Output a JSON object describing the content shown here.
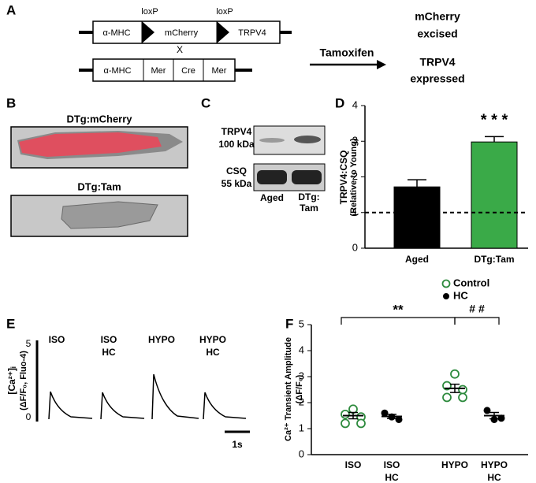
{
  "panels": [
    "A",
    "B",
    "C",
    "D",
    "E",
    "F"
  ],
  "construct": {
    "loxp": [
      "loxP",
      "loxP"
    ],
    "top": [
      "α-MHC",
      "mCherry",
      "TRPV4"
    ],
    "cross": "X",
    "bottom": [
      "α-MHC",
      "Mer",
      "Cre",
      "Mer"
    ],
    "arrow": "Tamoxifen",
    "result1": [
      "mCherry",
      "excised"
    ],
    "result2": [
      "TRPV4",
      "expressed"
    ]
  },
  "images": {
    "top": "DTg:mCherry",
    "bottom": "DTg:Tam"
  },
  "blot": {
    "rows": [
      [
        "TRPV4",
        "100 kDa"
      ],
      [
        "CSQ",
        "55 kDa"
      ]
    ],
    "lanes": [
      [
        "Aged"
      ],
      [
        "DTg:",
        "Tam"
      ]
    ]
  },
  "traces": {
    "ylabel": [
      "[Ca²⁺]ᵢ",
      "(ΔF/F₀, Fluo-4)"
    ],
    "scale_top": "5",
    "scale_bottom": "0",
    "labels": [
      [
        "ISO"
      ],
      [
        "ISO",
        "HC"
      ],
      [
        "HYPO"
      ],
      [
        "HYPO",
        "HC"
      ]
    ],
    "time": "1s"
  },
  "chart_data": [
    {
      "type": "bar",
      "ylabel": [
        "TRPV4:CSQ",
        "(Relative to Young)"
      ],
      "categories": [
        "Aged",
        "DTg:Tam"
      ],
      "values": [
        1.72,
        2.98
      ],
      "errors": [
        0.2,
        0.15
      ],
      "colors": [
        "#000000",
        "#3aaa48"
      ],
      "ylim": [
        0,
        4
      ],
      "yticks": [
        0,
        1,
        2,
        3,
        4
      ],
      "reference_line": 1,
      "annotation": "* * *"
    },
    {
      "type": "dot",
      "ylabel": [
        "Ca²⁺ Transient Amplitude",
        "(ΔF/F₀)"
      ],
      "categories": [
        [
          "ISO"
        ],
        [
          "ISO",
          "HC"
        ],
        [
          "HYPO"
        ],
        [
          "HYPO",
          "HC"
        ]
      ],
      "series": [
        {
          "name": "Control",
          "color": "#2e8b3e",
          "values": [
            [
              1.75,
              1.55,
              1.45,
              1.2,
              1.2
            ],
            null,
            [
              3.1,
              2.65,
              2.5,
              2.2,
              2.2
            ],
            null
          ],
          "means": [
            1.5,
            null,
            2.55,
            null
          ],
          "errors": [
            0.12,
            null,
            0.16,
            null
          ]
        },
        {
          "name": "HC",
          "color": "#000000",
          "values": [
            null,
            [
              1.6,
              1.35,
              1.45
            ],
            null,
            [
              1.7,
              1.4,
              1.35
            ]
          ],
          "means": [
            null,
            1.47,
            null,
            1.5
          ],
          "errors": [
            null,
            0.08,
            null,
            0.12
          ]
        }
      ],
      "ylim": [
        0,
        5
      ],
      "yticks": [
        0,
        1,
        2,
        3,
        4,
        5
      ],
      "annotations": [
        "**",
        "# #"
      ]
    }
  ]
}
